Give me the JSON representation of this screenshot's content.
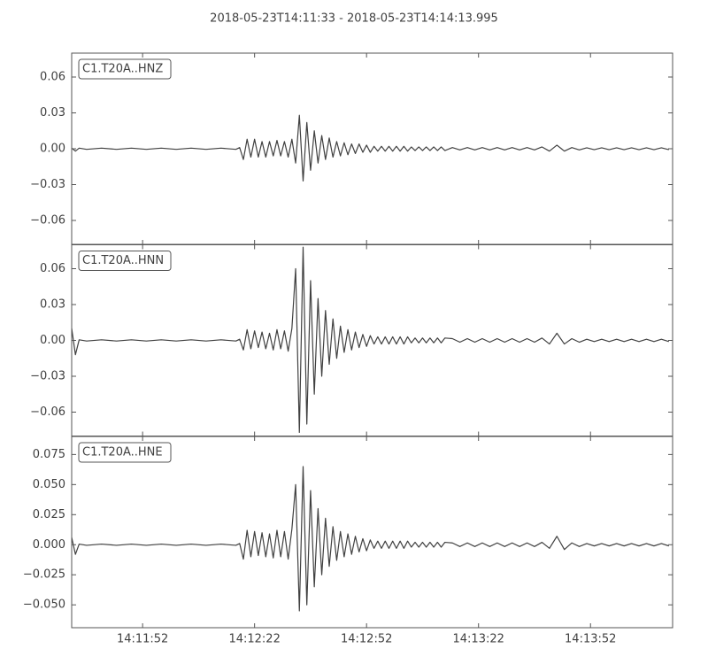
{
  "title": "2018-05-23T14:11:33  -  2018-05-23T14:14:13.995",
  "chart_data": [
    {
      "type": "line",
      "x": [
        0,
        1,
        2,
        4,
        8,
        12,
        16,
        20,
        24,
        28,
        32,
        36,
        40,
        44,
        45,
        46,
        47,
        48,
        49,
        50,
        51,
        52,
        53,
        54,
        55,
        56,
        57,
        58,
        59,
        60,
        61,
        62,
        63,
        64,
        65,
        66,
        67,
        68,
        69,
        70,
        71,
        72,
        73,
        74,
        75,
        76,
        77,
        78,
        79,
        80,
        81,
        82,
        83,
        84,
        85,
        86,
        87,
        88,
        89,
        90,
        91,
        92,
        93,
        94,
        95,
        96,
        97,
        98,
        99,
        100,
        102,
        104,
        106,
        108,
        110,
        112,
        114,
        116,
        118,
        120,
        122,
        124,
        126,
        128,
        130,
        132,
        134,
        136,
        138,
        140,
        142,
        144,
        146,
        148,
        150,
        152,
        154,
        156,
        158,
        160
      ],
      "series": [
        {
          "name": "C1.T20A..HNZ",
          "color": "#404040",
          "values": [
            0.0005,
            -0.002,
            0.0005,
            -0.0005,
            0.0005,
            -0.0005,
            0.0005,
            -0.0005,
            0.0005,
            -0.0005,
            0.0005,
            -0.0005,
            0.0005,
            -0.0005,
            0.001,
            -0.009,
            0.008,
            -0.007,
            0.008,
            -0.007,
            0.006,
            -0.007,
            0.006,
            -0.006,
            0.007,
            -0.006,
            0.006,
            -0.007,
            0.008,
            -0.012,
            0.028,
            -0.027,
            0.022,
            -0.018,
            0.015,
            -0.012,
            0.011,
            -0.009,
            0.009,
            -0.007,
            0.006,
            -0.006,
            0.005,
            -0.005,
            0.004,
            -0.004,
            0.004,
            -0.003,
            0.003,
            -0.003,
            0.002,
            -0.002,
            0.002,
            -0.002,
            0.002,
            -0.002,
            0.002,
            -0.002,
            0.002,
            -0.002,
            0.0015,
            -0.0015,
            0.0015,
            -0.0015,
            0.0015,
            -0.0015,
            0.0015,
            -0.0015,
            0.0015,
            -0.0015,
            0.001,
            -0.001,
            0.001,
            -0.001,
            0.001,
            -0.001,
            0.001,
            -0.001,
            0.001,
            -0.001,
            0.001,
            -0.001,
            0.0015,
            -0.002,
            0.003,
            -0.002,
            0.001,
            -0.001,
            0.0008,
            -0.0008,
            0.0008,
            -0.0008,
            0.0008,
            -0.0008,
            0.0008,
            -0.0008,
            0.0008,
            -0.0008,
            0.0008,
            -0.0008
          ]
        }
      ],
      "xlim": [
        0,
        160.995
      ],
      "ylim": [
        -0.08,
        0.08
      ],
      "yticks": [
        {
          "value": -0.06,
          "label": "−0.06"
        },
        {
          "value": -0.03,
          "label": "−0.03"
        },
        {
          "value": 0,
          "label": "0.00"
        },
        0.03,
        0.06
      ]
    },
    {
      "type": "line",
      "x": [
        0,
        1,
        2,
        4,
        8,
        12,
        16,
        20,
        24,
        28,
        32,
        36,
        40,
        44,
        45,
        46,
        47,
        48,
        49,
        50,
        51,
        52,
        53,
        54,
        55,
        56,
        57,
        58,
        59,
        60,
        61,
        62,
        63,
        64,
        65,
        66,
        67,
        68,
        69,
        70,
        71,
        72,
        73,
        74,
        75,
        76,
        77,
        78,
        79,
        80,
        81,
        82,
        83,
        84,
        85,
        86,
        87,
        88,
        89,
        90,
        91,
        92,
        93,
        94,
        95,
        96,
        97,
        98,
        99,
        100,
        102,
        104,
        106,
        108,
        110,
        112,
        114,
        116,
        118,
        120,
        122,
        124,
        126,
        128,
        130,
        132,
        134,
        136,
        138,
        140,
        142,
        144,
        146,
        148,
        150,
        152,
        154,
        156,
        158,
        160
      ],
      "series": [
        {
          "name": "C1.T20A..HNN",
          "color": "#404040",
          "values": [
            0.01,
            -0.012,
            0.0005,
            -0.0005,
            0.0005,
            -0.0005,
            0.0005,
            -0.0005,
            0.0005,
            -0.0005,
            0.0005,
            -0.0005,
            0.0005,
            -0.0005,
            0.001,
            -0.008,
            0.009,
            -0.007,
            0.008,
            -0.006,
            0.007,
            -0.007,
            0.006,
            -0.008,
            0.009,
            -0.007,
            0.008,
            -0.009,
            0.01,
            0.06,
            -0.077,
            0.078,
            -0.07,
            0.05,
            -0.045,
            0.035,
            -0.03,
            0.025,
            -0.02,
            0.018,
            -0.015,
            0.012,
            -0.01,
            0.009,
            -0.008,
            0.007,
            -0.006,
            0.005,
            -0.005,
            0.004,
            -0.003,
            0.003,
            -0.003,
            0.003,
            -0.003,
            0.003,
            -0.003,
            0.003,
            -0.003,
            0.003,
            -0.002,
            0.002,
            -0.002,
            0.002,
            -0.002,
            0.002,
            -0.002,
            0.002,
            -0.002,
            0.002,
            0.0015,
            -0.0015,
            0.0015,
            -0.0015,
            0.0015,
            -0.0015,
            0.0015,
            -0.0015,
            0.0015,
            -0.0015,
            0.0015,
            -0.0015,
            0.002,
            -0.003,
            0.006,
            -0.003,
            0.0015,
            -0.0015,
            0.001,
            -0.001,
            0.001,
            -0.001,
            0.001,
            -0.001,
            0.001,
            -0.001,
            0.001,
            -0.001,
            0.001,
            -0.001
          ]
        }
      ],
      "xlim": [
        0,
        160.995
      ],
      "ylim": [
        -0.08,
        0.08
      ],
      "yticks": [
        {
          "value": -0.06,
          "label": "−0.06"
        },
        {
          "value": -0.03,
          "label": "−0.03"
        },
        {
          "value": 0,
          "label": "0.00"
        },
        0.03,
        0.06
      ]
    },
    {
      "type": "line",
      "x": [
        0,
        1,
        2,
        4,
        8,
        12,
        16,
        20,
        24,
        28,
        32,
        36,
        40,
        44,
        45,
        46,
        47,
        48,
        49,
        50,
        51,
        52,
        53,
        54,
        55,
        56,
        57,
        58,
        59,
        60,
        61,
        62,
        63,
        64,
        65,
        66,
        67,
        68,
        69,
        70,
        71,
        72,
        73,
        74,
        75,
        76,
        77,
        78,
        79,
        80,
        81,
        82,
        83,
        84,
        85,
        86,
        87,
        88,
        89,
        90,
        91,
        92,
        93,
        94,
        95,
        96,
        97,
        98,
        99,
        100,
        102,
        104,
        106,
        108,
        110,
        112,
        114,
        116,
        118,
        120,
        122,
        124,
        126,
        128,
        130,
        132,
        134,
        136,
        138,
        140,
        142,
        144,
        146,
        148,
        150,
        152,
        154,
        156,
        158,
        160
      ],
      "series": [
        {
          "name": "C1.T20A..HNE",
          "color": "#404040",
          "values": [
            0.006,
            -0.008,
            0.0005,
            -0.0005,
            0.0005,
            -0.0005,
            0.0005,
            -0.0005,
            0.0005,
            -0.0005,
            0.0005,
            -0.0005,
            0.0005,
            -0.0005,
            0.001,
            -0.012,
            0.012,
            -0.01,
            0.011,
            -0.009,
            0.01,
            -0.01,
            0.009,
            -0.011,
            0.012,
            -0.01,
            0.011,
            -0.012,
            0.013,
            0.05,
            -0.055,
            0.065,
            -0.05,
            0.045,
            -0.035,
            0.03,
            -0.025,
            0.022,
            -0.018,
            0.015,
            -0.013,
            0.011,
            -0.01,
            0.009,
            -0.008,
            0.007,
            -0.006,
            0.005,
            -0.005,
            0.004,
            -0.003,
            0.003,
            -0.003,
            0.003,
            -0.003,
            0.003,
            -0.003,
            0.003,
            -0.003,
            0.003,
            -0.002,
            0.002,
            -0.002,
            0.002,
            -0.002,
            0.002,
            -0.002,
            0.002,
            -0.002,
            0.002,
            0.0015,
            -0.0015,
            0.0015,
            -0.0015,
            0.0015,
            -0.0015,
            0.0015,
            -0.0015,
            0.0015,
            -0.0015,
            0.0015,
            -0.0015,
            0.002,
            -0.003,
            0.007,
            -0.004,
            0.0015,
            -0.0015,
            0.001,
            -0.001,
            0.001,
            -0.001,
            0.001,
            -0.001,
            0.001,
            -0.001,
            0.001,
            -0.001,
            0.001,
            -0.001
          ]
        }
      ],
      "xlim": [
        0,
        160.995
      ],
      "ylim": [
        -0.069,
        0.09
      ],
      "yticks": [
        {
          "value": -0.05,
          "label": "−0.050"
        },
        {
          "value": -0.025,
          "label": "−0.025"
        },
        {
          "value": 0,
          "label": "0.000"
        },
        {
          "value": 0.025,
          "label": "0.025"
        },
        {
          "value": 0.05,
          "label": "0.050"
        },
        0.075
      ],
      "xticks": [
        {
          "value": 19,
          "label": "14:11:52"
        },
        {
          "value": 49,
          "label": "14:12:22"
        },
        {
          "value": 79,
          "label": "14:12:52"
        },
        {
          "value": 109,
          "label": "14:13:22"
        },
        {
          "value": 139,
          "label": "14:13:52"
        }
      ]
    }
  ]
}
